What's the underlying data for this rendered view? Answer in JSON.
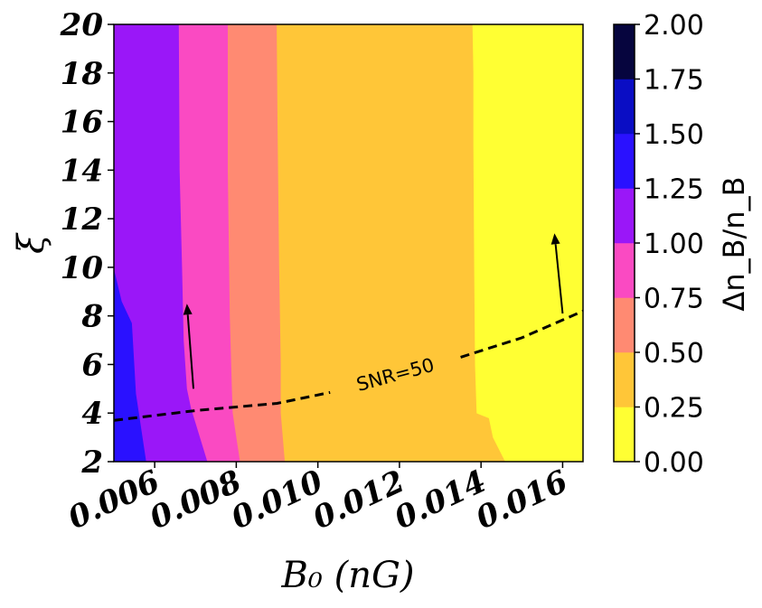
{
  "chart_data": {
    "type": "heatmap",
    "subtype": "filled-contour",
    "xlabel": "B₀ (nG)",
    "ylabel": "ξ",
    "xlim": [
      0.005,
      0.0165
    ],
    "ylim": [
      2,
      20
    ],
    "x_ticks": [
      "0.006",
      "0.008",
      "0.010",
      "0.012",
      "0.014",
      "0.016"
    ],
    "x_tick_values": [
      0.006,
      0.008,
      0.01,
      0.012,
      0.014,
      0.016
    ],
    "y_ticks": [
      "2",
      "4",
      "6",
      "8",
      "10",
      "12",
      "14",
      "16",
      "18",
      "20"
    ],
    "y_tick_values": [
      2,
      4,
      6,
      8,
      10,
      12,
      14,
      16,
      18,
      20
    ],
    "colorbar": {
      "label": "Δn_B/n_B",
      "levels": [
        0.0,
        0.25,
        0.5,
        0.75,
        1.0,
        1.25,
        1.5,
        1.75,
        2.0
      ],
      "tick_labels": [
        "0.00",
        "0.25",
        "0.50",
        "0.75",
        "1.00",
        "1.25",
        "1.50",
        "1.75",
        "2.00"
      ],
      "colors": [
        "#ffff33",
        "#ffc638",
        "#ff8a72",
        "#fa4ac2",
        "#9a17f8",
        "#2a11ff",
        "#0a0dc4",
        "#06053e"
      ]
    },
    "regions": [
      {
        "level_index": 7,
        "boundary": [
          [
            0.005,
            2.0
          ],
          [
            0.005,
            3.2
          ],
          [
            0.00508,
            2.3
          ],
          [
            0.00512,
            2.0
          ]
        ]
      },
      {
        "level_index": 5,
        "boundary": [
          [
            0.005,
            2.0
          ],
          [
            0.005,
            10.0
          ],
          [
            0.0052,
            8.6
          ],
          [
            0.00545,
            7.7
          ],
          [
            0.00555,
            4.8
          ],
          [
            0.0058,
            2.0
          ]
        ]
      },
      {
        "level_index": 4,
        "boundary": [
          [
            0.005,
            10.0
          ],
          [
            0.005,
            20.0
          ],
          [
            0.0066,
            20.0
          ],
          [
            0.00662,
            14.0
          ],
          [
            0.00668,
            10.0
          ],
          [
            0.00672,
            7.0
          ],
          [
            0.0068,
            5.0
          ],
          [
            0.0069,
            4.2
          ],
          [
            0.0073,
            2.0
          ],
          [
            0.0058,
            2.0
          ],
          [
            0.00555,
            4.8
          ],
          [
            0.00545,
            7.7
          ],
          [
            0.0052,
            8.6
          ]
        ]
      },
      {
        "level_index": 3,
        "boundary": [
          [
            0.0066,
            20.0
          ],
          [
            0.0078,
            20.0
          ],
          [
            0.0078,
            14.0
          ],
          [
            0.00785,
            8.0
          ],
          [
            0.0079,
            5.0
          ],
          [
            0.00792,
            4.0
          ],
          [
            0.0081,
            2.0
          ],
          [
            0.0073,
            2.0
          ],
          [
            0.0069,
            4.2
          ],
          [
            0.0068,
            5.0
          ],
          [
            0.00672,
            7.0
          ],
          [
            0.00668,
            10.0
          ],
          [
            0.00662,
            14.0
          ]
        ]
      },
      {
        "level_index": 2,
        "boundary": [
          [
            0.0078,
            20.0
          ],
          [
            0.009,
            20.0
          ],
          [
            0.00902,
            16.0
          ],
          [
            0.00906,
            10.0
          ],
          [
            0.0091,
            6.0
          ],
          [
            0.0091,
            4.0
          ],
          [
            0.0092,
            2.0
          ],
          [
            0.0081,
            2.0
          ],
          [
            0.00792,
            4.0
          ],
          [
            0.0079,
            5.0
          ],
          [
            0.00785,
            8.0
          ],
          [
            0.0078,
            14.0
          ]
        ]
      },
      {
        "level_index": 1,
        "boundary": [
          [
            0.009,
            20.0
          ],
          [
            0.0138,
            20.0
          ],
          [
            0.01382,
            18.0
          ],
          [
            0.01382,
            15.0
          ],
          [
            0.01384,
            10.0
          ],
          [
            0.01386,
            6.0
          ],
          [
            0.0139,
            4.0
          ],
          [
            0.0143,
            3.0
          ],
          [
            0.0146,
            2.0
          ],
          [
            0.0092,
            2.0
          ],
          [
            0.0091,
            4.0
          ],
          [
            0.0091,
            6.0
          ],
          [
            0.00906,
            10.0
          ],
          [
            0.00902,
            16.0
          ]
        ]
      },
      {
        "level_index": 0,
        "boundary": [
          [
            0.0138,
            20.0
          ],
          [
            0.0165,
            20.0
          ],
          [
            0.0165,
            2.0
          ],
          [
            0.0146,
            2.0
          ],
          [
            0.0143,
            3.0
          ],
          [
            0.0142,
            3.8
          ],
          [
            0.0139,
            4.0
          ],
          [
            0.01386,
            6.0
          ],
          [
            0.01384,
            10.0
          ],
          [
            0.01382,
            15.0
          ],
          [
            0.01382,
            18.0
          ]
        ]
      }
    ],
    "snr_contour": {
      "label": "SNR=50",
      "style": "dashed",
      "points": [
        [
          0.005,
          3.7
        ],
        [
          0.007,
          4.1
        ],
        [
          0.009,
          4.4
        ],
        [
          0.0103,
          4.85
        ],
        [
          0.0135,
          6.3
        ],
        [
          0.015,
          7.1
        ],
        [
          0.0165,
          8.2
        ]
      ]
    },
    "arrows": [
      {
        "from": [
          0.00695,
          5.0
        ],
        "to": [
          0.00679,
          8.5
        ]
      },
      {
        "from": [
          0.016,
          8.1
        ],
        "to": [
          0.0158,
          11.4
        ]
      }
    ]
  }
}
